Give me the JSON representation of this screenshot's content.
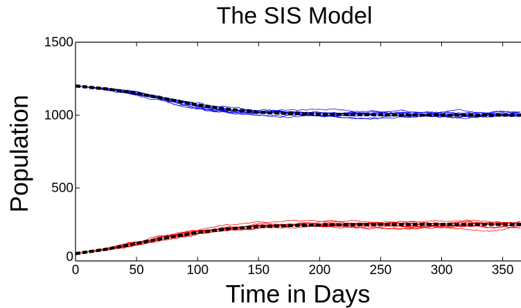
{
  "chart_data": {
    "type": "line",
    "title": "The SIS Model",
    "xlabel": "Time in Days",
    "ylabel": "Population",
    "xlim": [
      0,
      365
    ],
    "ylim": [
      0,
      1500
    ],
    "xticks": [
      "0",
      "50",
      "100",
      "150",
      "200",
      "250",
      "300",
      "350"
    ],
    "yticks": [
      "0",
      "500",
      "1000",
      "1500"
    ],
    "grid": false,
    "legend": "none",
    "colors": {
      "susceptible": "#0000ff",
      "infected": "#ff0000",
      "mean": "#000000"
    },
    "num_stochastic_runs_per_group": 10,
    "series": [
      {
        "style": "dashed-thick",
        "color": "#000000",
        "x": [
          0,
          25,
          50,
          75,
          100,
          125,
          150,
          175,
          200,
          250,
          300,
          365
        ],
        "y": [
          1200,
          1180,
          1150,
          1110,
          1070,
          1040,
          1020,
          1012,
          1006,
          1002,
          1000,
          1000
        ]
      },
      {
        "style": "dashed-thick",
        "color": "#000000",
        "x": [
          0,
          25,
          50,
          75,
          100,
          125,
          150,
          175,
          200,
          250,
          300,
          365
        ],
        "y": [
          50,
          80,
          120,
          160,
          195,
          220,
          235,
          243,
          247,
          250,
          250,
          250
        ]
      }
    ]
  }
}
